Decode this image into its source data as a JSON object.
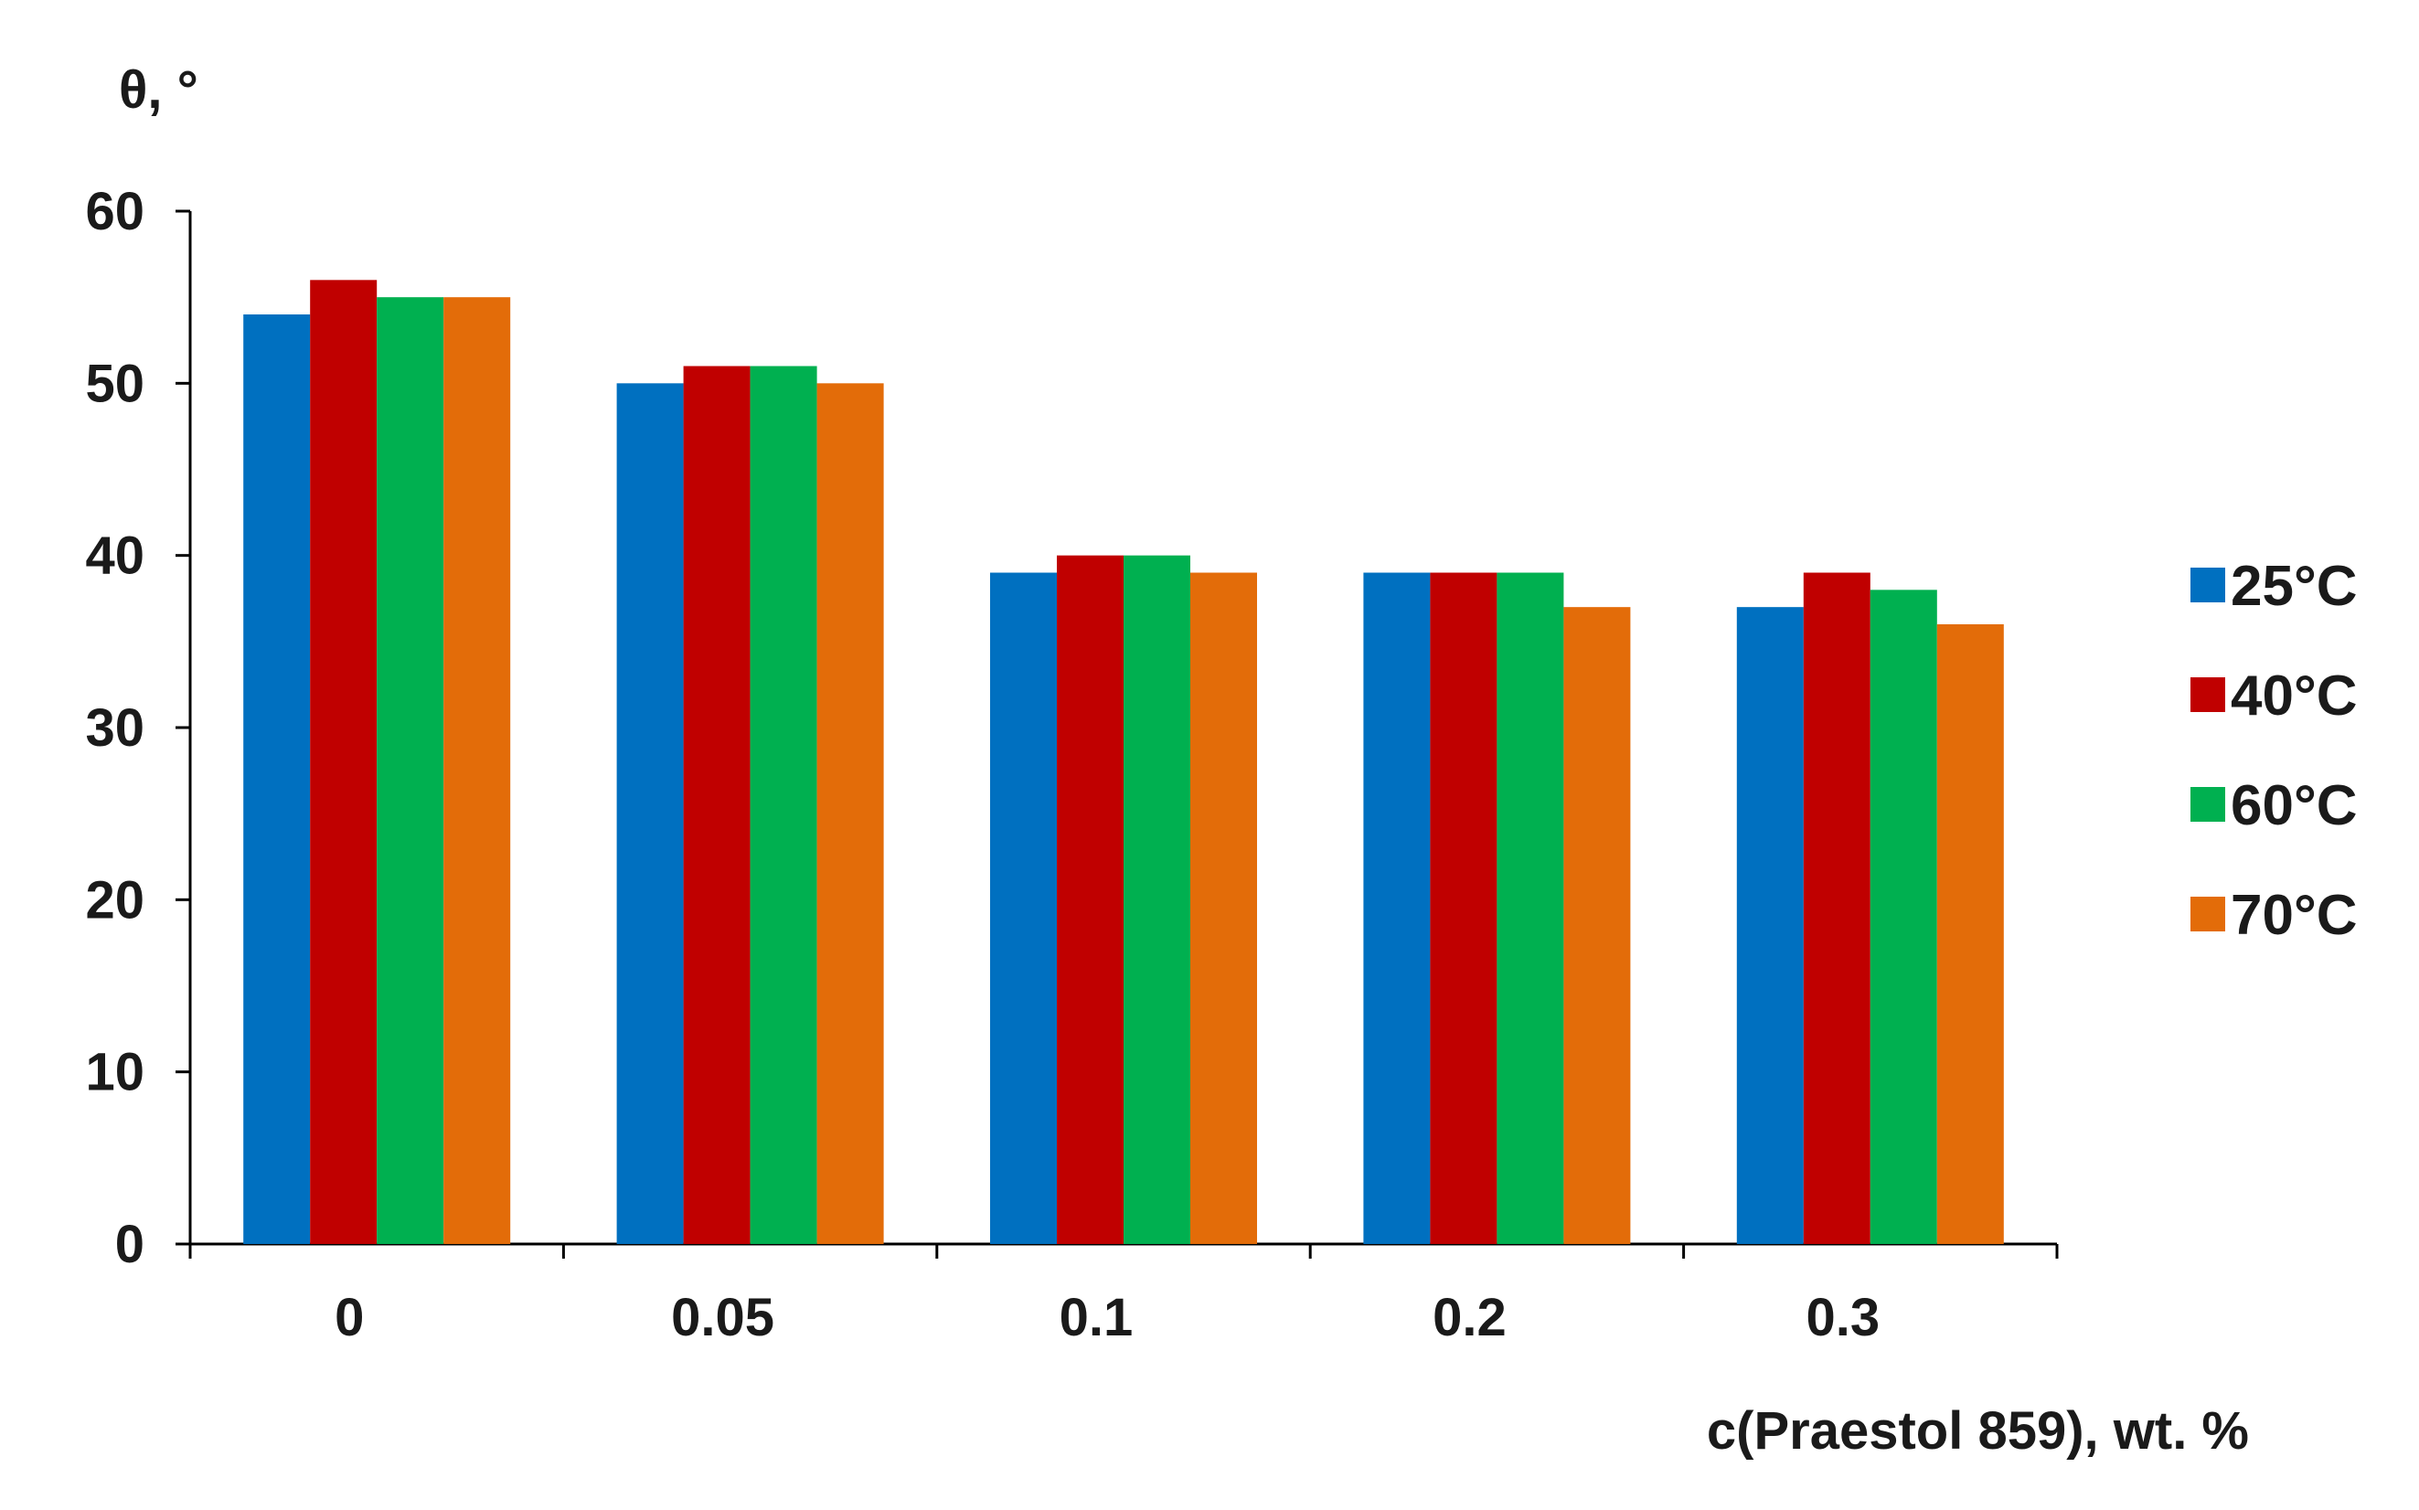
{
  "chart_data": {
    "type": "bar",
    "title": "",
    "xlabel": "c(Praestol 859), wt. %",
    "ylabel": "θ, °",
    "categories": [
      "0",
      "0.05",
      "0.1",
      "0.2",
      "0.3"
    ],
    "series": [
      {
        "name": "25°C",
        "color": "#0070C0",
        "values": [
          54,
          50,
          39,
          39,
          37
        ]
      },
      {
        "name": "40°C",
        "color": "#C00000",
        "values": [
          56,
          51,
          40,
          39,
          39
        ]
      },
      {
        "name": "60°C",
        "color": "#00B050",
        "values": [
          55,
          51,
          40,
          39,
          38
        ]
      },
      {
        "name": "70°C",
        "color": "#E36C09",
        "values": [
          55,
          50,
          39,
          37,
          36
        ]
      }
    ],
    "ylim": [
      0,
      60
    ],
    "yticks": [
      0,
      10,
      20,
      30,
      40,
      50,
      60
    ],
    "grid": false,
    "legend_position": "right"
  }
}
